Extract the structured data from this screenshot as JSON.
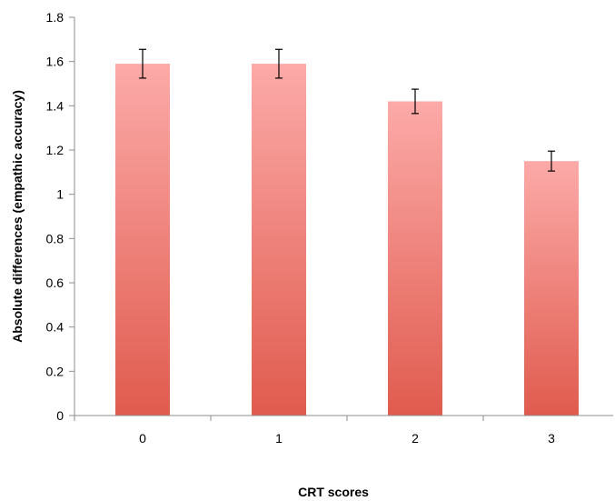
{
  "chart_data": {
    "type": "bar",
    "title": "",
    "xlabel": "CRT scores",
    "ylabel": "Absolute differences (empathic accuracy)",
    "categories": [
      "0",
      "1",
      "2",
      "3"
    ],
    "values": [
      1.59,
      1.59,
      1.42,
      1.15
    ],
    "error": [
      0.065,
      0.065,
      0.055,
      0.045
    ],
    "ylim": [
      0,
      1.8
    ],
    "yticks": [
      "0",
      "0.2",
      "0.4",
      "0.6",
      "0.8",
      "1",
      "1.2",
      "1.4",
      "1.6",
      "1.8"
    ],
    "grid": false,
    "legend": "none",
    "bar_color_top": "#fcaaa8",
    "bar_color_bottom": "#e05b4e"
  }
}
